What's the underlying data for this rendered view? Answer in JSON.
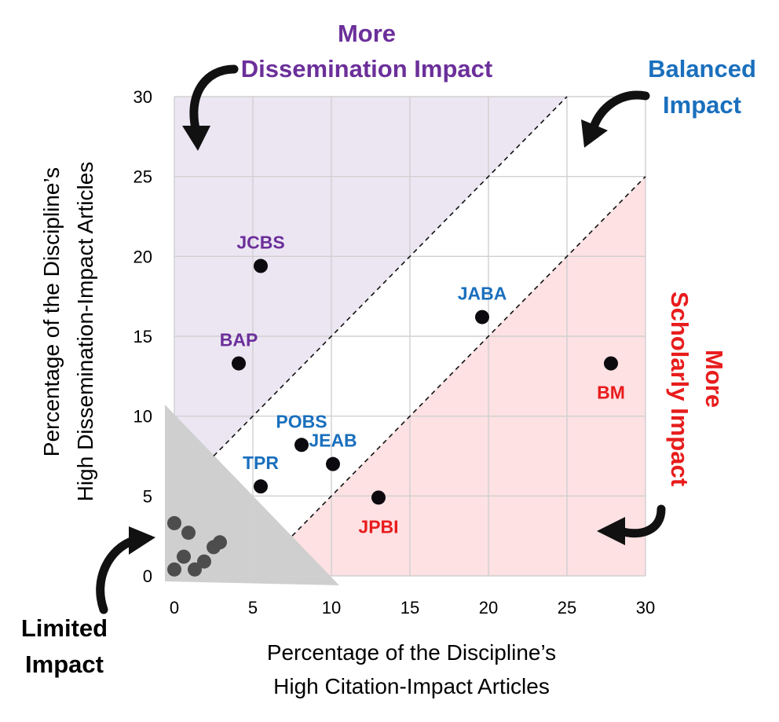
{
  "colors": {
    "dissemination": "#6b2f9a",
    "balanced": "#1a6fbd",
    "scholarly": "#e81c1c",
    "limited": "#000000",
    "region_dissemination_fill": "#ece6f3",
    "region_scholarly_fill": "#fde1e3",
    "region_limited_fill": "#cfcfcf",
    "grid": "#d0d0d0",
    "point_major": "#0d0a0f",
    "point_limited": "#4d4d4d"
  },
  "callouts": {
    "dissemination": [
      "More",
      "Dissemination Impact"
    ],
    "balanced": [
      "Balanced",
      "Impact"
    ],
    "scholarly": [
      "More",
      "Scholarly Impact"
    ],
    "limited": [
      "Limited",
      "Impact"
    ]
  },
  "chart_data": {
    "type": "scatter",
    "title": "",
    "xlabel": [
      "Percentage of the Discipline’s",
      "High Citation-Impact Articles"
    ],
    "ylabel": [
      "Percentage of the Discipline’s",
      "High Dissemination-Impact Articles"
    ],
    "xlim": [
      0,
      30
    ],
    "ylim": [
      0,
      30
    ],
    "xticks": [
      0,
      5,
      10,
      15,
      20,
      25,
      30
    ],
    "yticks": [
      0,
      5,
      10,
      15,
      20,
      25,
      30
    ],
    "grid": true,
    "reference_lines": [
      {
        "style": "dashed",
        "x": [
          2.5,
          25
        ],
        "y": [
          7.5,
          30
        ]
      },
      {
        "style": "dashed",
        "x": [
          7.5,
          30
        ],
        "y": [
          2.5,
          25
        ]
      }
    ],
    "regions": [
      {
        "name": "More Dissemination Impact",
        "fill": "#ece6f3"
      },
      {
        "name": "Balanced Impact",
        "fill": "#ffffff"
      },
      {
        "name": "More Scholarly Impact",
        "fill": "#fde1e3"
      },
      {
        "name": "Limited Impact",
        "fill": "#cfcfcf"
      }
    ],
    "points": [
      {
        "label": "JCBS",
        "x": 5.5,
        "y": 19.4,
        "group": "dissemination"
      },
      {
        "label": "BAP",
        "x": 4.1,
        "y": 13.3,
        "group": "dissemination"
      },
      {
        "label": "JABA",
        "x": 19.6,
        "y": 16.2,
        "group": "balanced"
      },
      {
        "label": "POBS",
        "x": 8.1,
        "y": 8.2,
        "group": "balanced"
      },
      {
        "label": "JEAB",
        "x": 10.1,
        "y": 7.0,
        "group": "balanced"
      },
      {
        "label": "TPR",
        "x": 5.5,
        "y": 5.6,
        "group": "balanced"
      },
      {
        "label": "JPBI",
        "x": 13.0,
        "y": 4.9,
        "group": "scholarly"
      },
      {
        "label": "BM",
        "x": 27.8,
        "y": 13.3,
        "group": "scholarly"
      }
    ],
    "limited_points": [
      {
        "x": 0.0,
        "y": 3.3
      },
      {
        "x": 0.9,
        "y": 2.7
      },
      {
        "x": 0.6,
        "y": 1.2
      },
      {
        "x": 1.9,
        "y": 0.9
      },
      {
        "x": 2.5,
        "y": 1.8
      },
      {
        "x": 2.9,
        "y": 2.1
      },
      {
        "x": 1.3,
        "y": 0.4
      },
      {
        "x": 0.0,
        "y": 0.4
      }
    ]
  }
}
